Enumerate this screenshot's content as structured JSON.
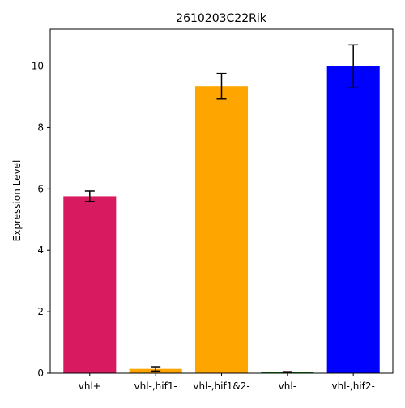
{
  "chart_data": {
    "type": "bar",
    "title": "2610203C22Rik",
    "xlabel": "",
    "ylabel": "Expression Level",
    "categories": [
      "vhl+",
      "vhl-,hif1-",
      "vhl-,hif1&2-",
      "vhl-",
      "vhl-,hif2-"
    ],
    "values": [
      5.76,
      0.14,
      9.35,
      0.03,
      10.0
    ],
    "errors": [
      0.17,
      0.07,
      0.41,
      0.02,
      0.69
    ],
    "colors": [
      "#d81b60",
      "#ffa500",
      "#ffa500",
      "#008000",
      "#0000ff"
    ],
    "ylim": [
      0,
      11.2
    ],
    "yticks": [
      0,
      2,
      4,
      6,
      8,
      10
    ],
    "grid": false,
    "legend": "none"
  }
}
